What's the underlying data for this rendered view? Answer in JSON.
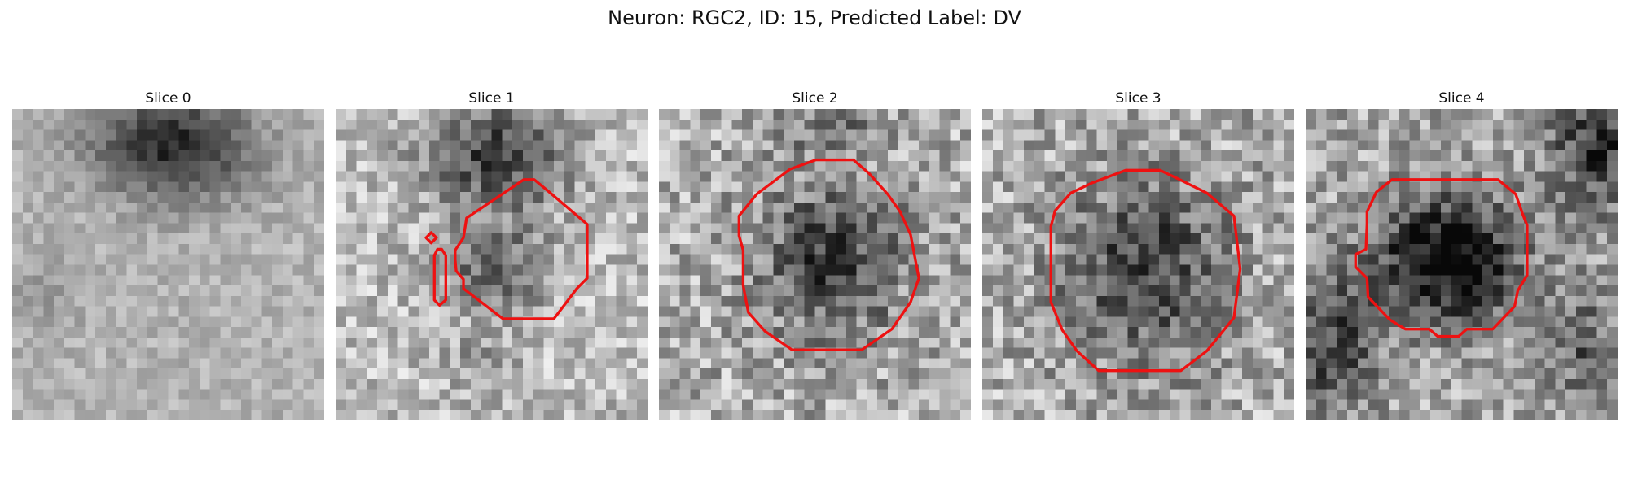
{
  "figure": {
    "suptitle": "Neuron: RGC2, ID: 15, Predicted Label: DV"
  },
  "panels": [
    {
      "title": "Slice 0",
      "has_contour": false
    },
    {
      "title": "Slice 1",
      "has_contour": true
    },
    {
      "title": "Slice 2",
      "has_contour": true
    },
    {
      "title": "Slice 3",
      "has_contour": true
    },
    {
      "title": "Slice 4",
      "has_contour": true
    }
  ],
  "colors": {
    "contour": "#ee1111",
    "background": "#ffffff"
  }
}
